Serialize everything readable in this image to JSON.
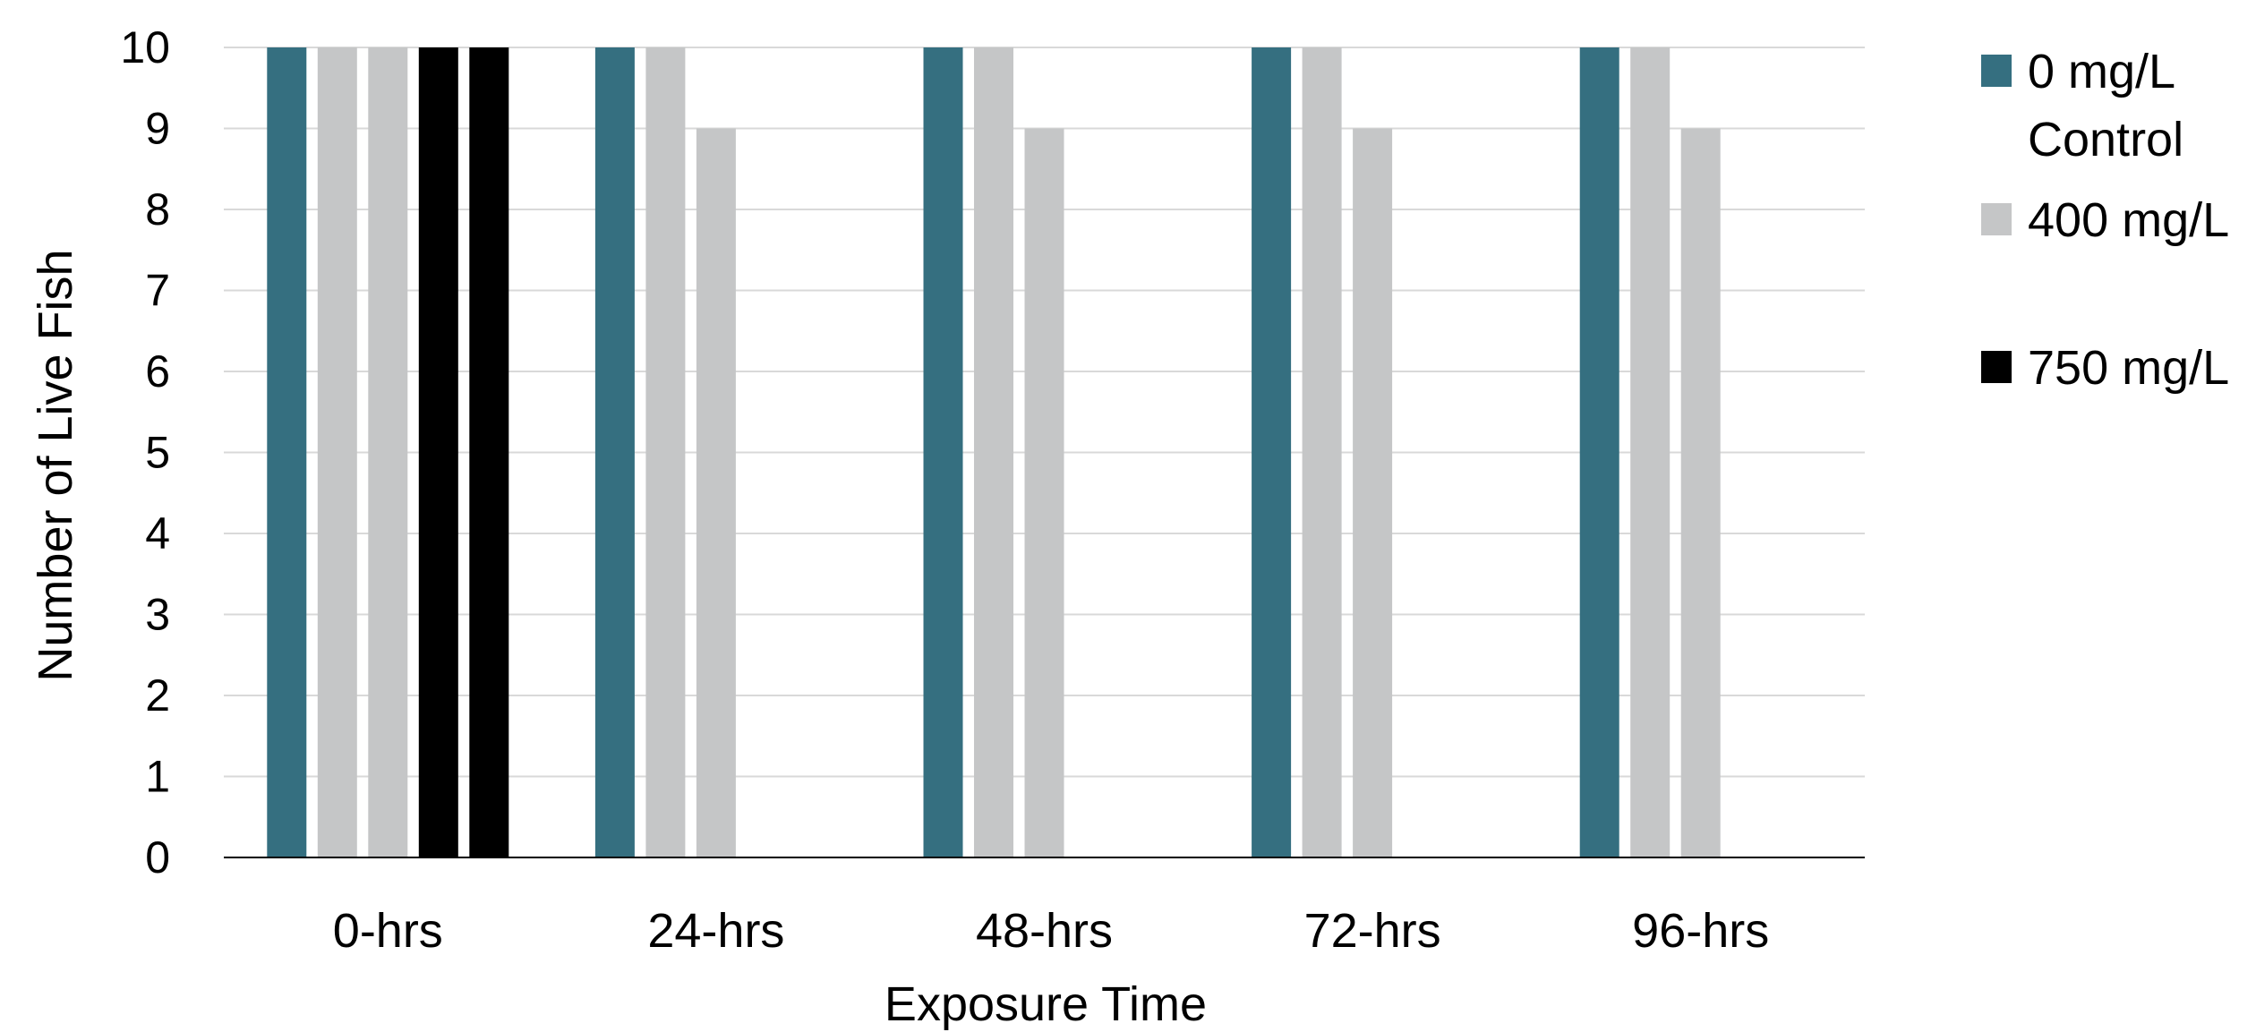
{
  "chart_data": {
    "type": "bar",
    "title": "",
    "xlabel": "Exposure Time",
    "ylabel": "Number of Live Fish",
    "ylim": [
      0,
      10
    ],
    "yticks": [
      0,
      1,
      2,
      3,
      4,
      5,
      6,
      7,
      8,
      9,
      10
    ],
    "grid": true,
    "legend_position": "right",
    "categories": [
      "0-hrs",
      "24-hrs",
      "48-hrs",
      "72-hrs",
      "96-hrs"
    ],
    "series": [
      {
        "values": [
          10,
          10,
          10,
          10,
          10
        ],
        "color": "#356f80"
      },
      {
        "values": [
          10,
          10,
          10,
          10,
          10
        ],
        "color": "#c5c6c7"
      },
      {
        "values": [
          10,
          9,
          9,
          9,
          9
        ],
        "color": "#c5c6c7"
      },
      {
        "values": [
          10,
          0,
          0,
          0,
          0
        ],
        "color": "#000000"
      },
      {
        "values": [
          10,
          0,
          0,
          0,
          0
        ],
        "color": "#000000"
      }
    ],
    "legend": [
      {
        "label_lines": [
          "0 mg/L",
          "Control"
        ],
        "color": "#356f80"
      },
      {
        "label_lines": [
          "400 mg/L"
        ],
        "color": "#c5c6c7"
      },
      {
        "label_lines": [
          "750 mg/L"
        ],
        "color": "#000000"
      }
    ]
  }
}
